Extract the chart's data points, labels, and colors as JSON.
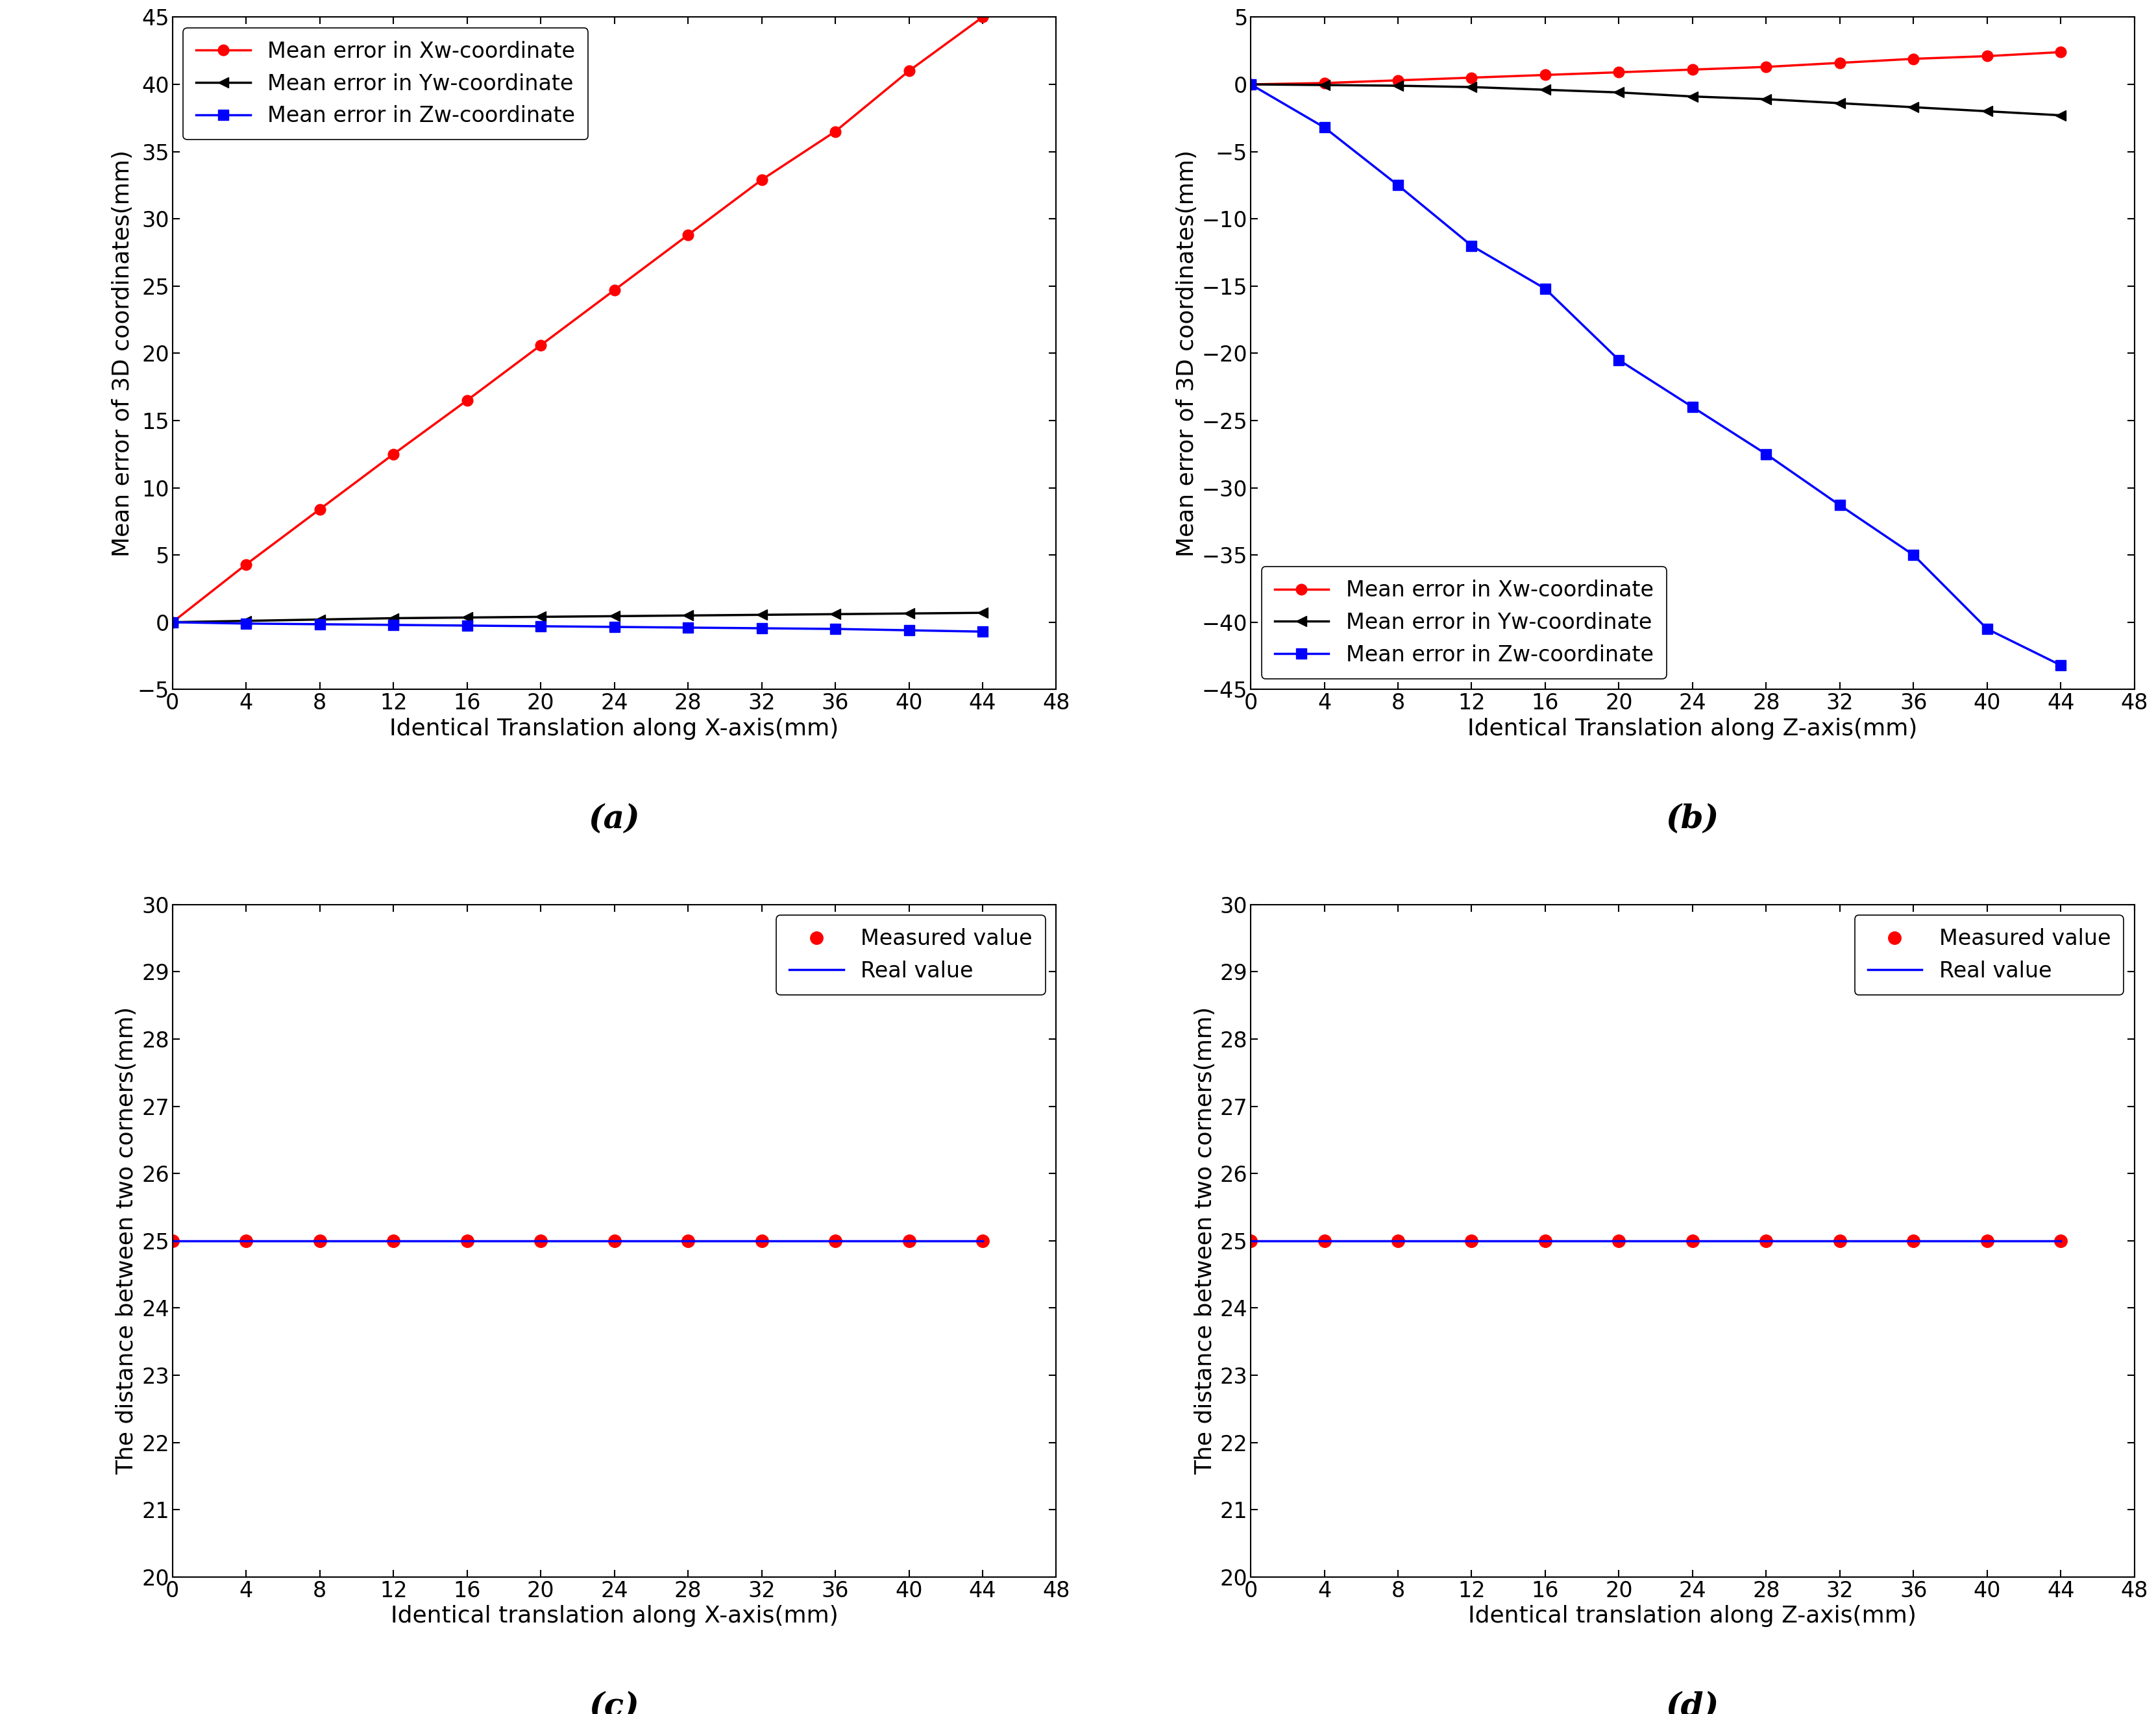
{
  "x_translation": [
    0,
    4,
    8,
    12,
    16,
    20,
    24,
    28,
    32,
    36,
    40,
    44
  ],
  "plot_a": {
    "red": [
      0.0,
      4.3,
      8.4,
      12.5,
      16.5,
      20.6,
      24.7,
      28.8,
      32.9,
      36.5,
      41.0,
      45.0
    ],
    "black": [
      0.0,
      0.1,
      0.2,
      0.3,
      0.35,
      0.4,
      0.45,
      0.5,
      0.55,
      0.6,
      0.65,
      0.7
    ],
    "blue": [
      0.0,
      -0.1,
      -0.15,
      -0.2,
      -0.25,
      -0.3,
      -0.35,
      -0.4,
      -0.45,
      -0.5,
      -0.6,
      -0.7
    ],
    "xlabel": "Identical Translation along X-axis(mm)",
    "ylabel": "Mean error of 3D coordinates(mm)",
    "ylim": [
      -5,
      45
    ],
    "yticks": [
      -5,
      0,
      5,
      10,
      15,
      20,
      25,
      30,
      35,
      40,
      45
    ],
    "label": "(a)"
  },
  "plot_b": {
    "red": [
      0.0,
      0.1,
      0.3,
      0.5,
      0.7,
      0.9,
      1.1,
      1.3,
      1.6,
      1.9,
      2.1,
      2.4
    ],
    "black": [
      0.0,
      -0.05,
      -0.1,
      -0.2,
      -0.4,
      -0.6,
      -0.9,
      -1.1,
      -1.4,
      -1.7,
      -2.0,
      -2.3
    ],
    "blue": [
      0.0,
      -3.2,
      -7.5,
      -12.0,
      -15.2,
      -20.5,
      -24.0,
      -27.5,
      -31.3,
      -35.0,
      -40.5,
      -43.2
    ],
    "xlabel": "Identical Translation along Z-axis(mm)",
    "ylabel": "Mean error of 3D coordinates(mm)",
    "ylim": [
      -45,
      5
    ],
    "yticks": [
      -45,
      -40,
      -35,
      -30,
      -25,
      -20,
      -15,
      -10,
      -5,
      0,
      5
    ],
    "label": "(b)"
  },
  "plot_c": {
    "measured": [
      25.0,
      25.0,
      25.0,
      25.0,
      25.0,
      25.0,
      25.0,
      25.0,
      25.0,
      25.0,
      25.0,
      25.0
    ],
    "real": 25.0,
    "xlabel": "Identical translation along X-axis(mm)",
    "ylabel": "The distance between two corners(mm)",
    "ylim": [
      20,
      30
    ],
    "yticks": [
      20,
      21,
      22,
      23,
      24,
      25,
      26,
      27,
      28,
      29,
      30
    ],
    "label": "(c)"
  },
  "plot_d": {
    "measured": [
      25.0,
      25.0,
      25.0,
      25.0,
      25.0,
      25.0,
      25.0,
      25.0,
      25.0,
      25.0,
      25.0,
      25.0
    ],
    "real": 25.0,
    "xlabel": "Identical translation along Z-axis(mm)",
    "ylabel": "The distance between two corners(mm)",
    "ylim": [
      20,
      30
    ],
    "yticks": [
      20,
      21,
      22,
      23,
      24,
      25,
      26,
      27,
      28,
      29,
      30
    ],
    "label": "(d)"
  },
  "xticks": [
    0,
    4,
    8,
    12,
    16,
    20,
    24,
    28,
    32,
    36,
    40,
    44,
    48
  ],
  "xlim": [
    0,
    48
  ],
  "legend_labels": {
    "red": "Mean error in Xw-coordinate",
    "black": "Mean error in Yw-coordinate",
    "blue": "Mean error in Zw-coordinate"
  },
  "legend_labels_cd": {
    "measured": "Measured value",
    "real": "Real value"
  },
  "colors": {
    "red": "#FF0000",
    "black": "#000000",
    "blue": "#0000FF"
  },
  "marker_size": 12,
  "line_width": 2.5,
  "font_size_label": 26,
  "font_size_tick": 24,
  "font_size_legend": 24,
  "font_size_sublabel": 36
}
